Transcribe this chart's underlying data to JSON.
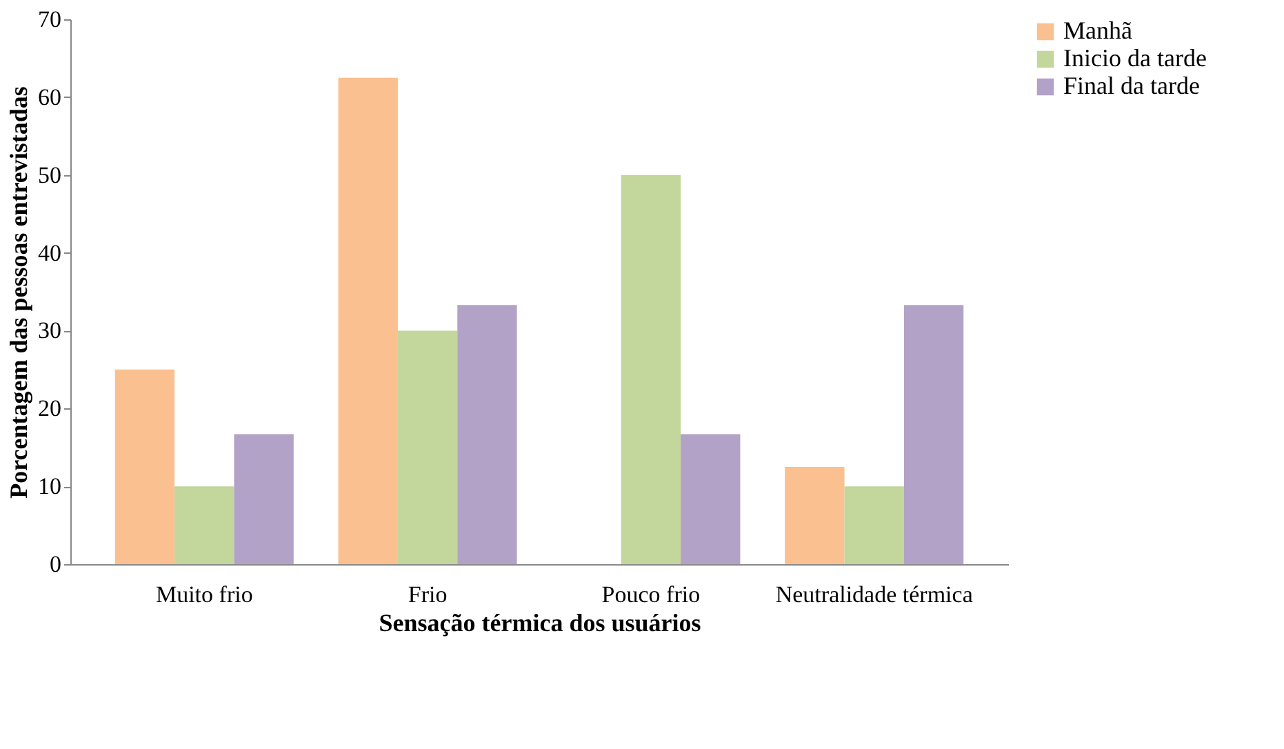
{
  "chart_data": {
    "type": "bar",
    "xlabel": "Sensação térmica dos usuários",
    "ylabel": "Porcentagem das pessoas entrevistadas",
    "categories": [
      "Muito frio",
      "Frio",
      "Pouco frio",
      "Neutralidade térmica"
    ],
    "series": [
      {
        "name": "Manhã",
        "color": "#fac090",
        "values": [
          25,
          62.5,
          0,
          12.5
        ]
      },
      {
        "name": "Inicio da tarde",
        "color": "#c3d69b",
        "values": [
          10,
          30,
          50,
          10
        ]
      },
      {
        "name": "Final da tarde",
        "color": "#b3a2c7",
        "values": [
          16.7,
          33.3,
          16.7,
          33.3
        ]
      }
    ],
    "ylim": [
      0,
      70
    ],
    "yticks": [
      0,
      10,
      20,
      30,
      40,
      50,
      60,
      70
    ],
    "grid": false,
    "legend": "right"
  }
}
